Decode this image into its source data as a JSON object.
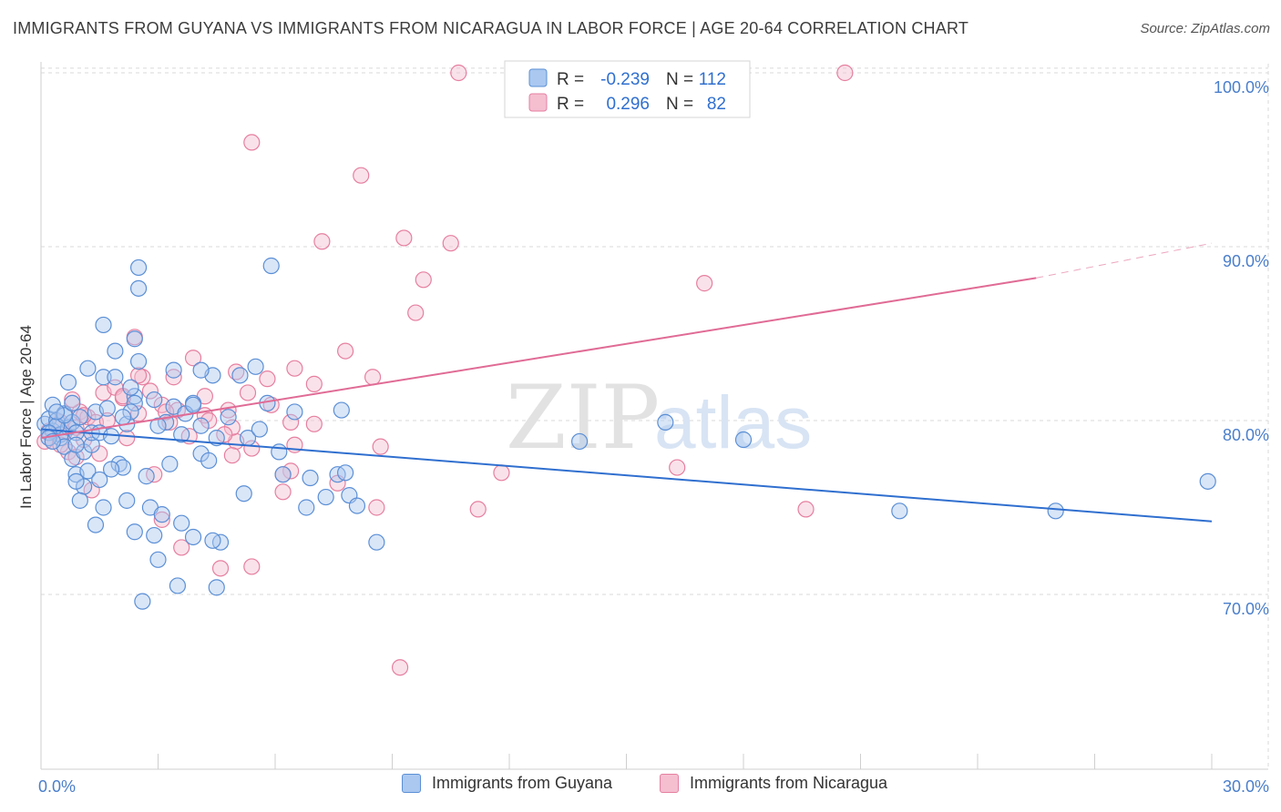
{
  "title": "IMMIGRANTS FROM GUYANA VS IMMIGRANTS FROM NICARAGUA IN LABOR FORCE | AGE 20-64 CORRELATION CHART",
  "source": "Source: ZipAtlas.com",
  "watermark": {
    "zip": "ZIP",
    "atlas": "atlas"
  },
  "colors": {
    "guyana_fill": "#aac8f0",
    "guyana_stroke": "#5b8fd6",
    "guyana_line": "#2f6fcf",
    "nicaragua_fill": "#f5bfd0",
    "nicaragua_stroke": "#e67fa0",
    "nicaragua_line": "#e06b95",
    "tick": "#4a7ecb",
    "grid": "#d9d9d9"
  },
  "legend": {
    "guyana": {
      "r_label": "R =",
      "r_value": "-0.239",
      "n_label": "N =",
      "n_value": "112"
    },
    "nicaragua": {
      "r_label": "R =",
      "r_value": "0.296",
      "n_label": "N =",
      "n_value": "82"
    }
  },
  "chart_data": {
    "type": "scatter",
    "ylabel": "In Labor Force | Age 20-64",
    "x_tick_labels": [
      "0.0%",
      "30.0%"
    ],
    "y_tick_labels": [
      "70.0%",
      "80.0%",
      "90.0%",
      "100.0%"
    ],
    "y_ticks": [
      70,
      80,
      90,
      100
    ],
    "xlim": [
      0,
      30
    ],
    "ylim": [
      60,
      101
    ],
    "grid": true,
    "legend_position": "top-center",
    "series": [
      {
        "name": "Immigrants from Guyana",
        "trend": {
          "x": [
            0,
            30
          ],
          "y": [
            79.5,
            74.2
          ]
        },
        "points": [
          [
            0.1,
            79.8
          ],
          [
            0.2,
            80.1
          ],
          [
            0.3,
            79.4
          ],
          [
            0.4,
            80.0
          ],
          [
            0.5,
            79.2
          ],
          [
            0.3,
            80.9
          ],
          [
            0.6,
            80.4
          ],
          [
            0.7,
            79.6
          ],
          [
            0.8,
            79.9
          ],
          [
            0.5,
            79.0
          ],
          [
            0.9,
            79.3
          ],
          [
            1.0,
            80.2
          ],
          [
            0.4,
            79.7
          ],
          [
            0.2,
            79.3
          ],
          [
            0.6,
            78.5
          ],
          [
            0.8,
            77.8
          ],
          [
            1.1,
            78.2
          ],
          [
            1.3,
            78.6
          ],
          [
            0.9,
            76.9
          ],
          [
            1.2,
            77.1
          ],
          [
            0.7,
            82.2
          ],
          [
            1.6,
            82.5
          ],
          [
            1.6,
            85.5
          ],
          [
            2.4,
            84.7
          ],
          [
            2.5,
            83.4
          ],
          [
            2.5,
            87.6
          ],
          [
            2.4,
            81.4
          ],
          [
            2.4,
            81.0
          ],
          [
            2.2,
            79.8
          ],
          [
            2.0,
            77.5
          ],
          [
            2.1,
            77.3
          ],
          [
            1.8,
            77.2
          ],
          [
            1.5,
            76.6
          ],
          [
            1.1,
            76.2
          ],
          [
            0.9,
            76.5
          ],
          [
            1.6,
            75.0
          ],
          [
            2.2,
            75.4
          ],
          [
            2.8,
            75.0
          ],
          [
            2.4,
            73.6
          ],
          [
            2.9,
            73.4
          ],
          [
            3.0,
            72.0
          ],
          [
            3.5,
            70.5
          ],
          [
            3.6,
            74.1
          ],
          [
            3.9,
            73.3
          ],
          [
            4.5,
            70.4
          ],
          [
            4.6,
            73.0
          ],
          [
            4.4,
            73.1
          ],
          [
            2.6,
            69.6
          ],
          [
            3.6,
            79.2
          ],
          [
            4.1,
            79.7
          ],
          [
            4.1,
            78.1
          ],
          [
            4.3,
            77.7
          ],
          [
            3.4,
            80.8
          ],
          [
            3.9,
            81.0
          ],
          [
            4.4,
            82.6
          ],
          [
            5.8,
            81.0
          ],
          [
            5.5,
            83.1
          ],
          [
            6.5,
            80.5
          ],
          [
            6.8,
            75.0
          ],
          [
            6.9,
            76.7
          ],
          [
            7.3,
            75.6
          ],
          [
            7.6,
            76.9
          ],
          [
            7.8,
            77.0
          ],
          [
            7.9,
            75.7
          ],
          [
            8.1,
            75.1
          ],
          [
            8.6,
            73.0
          ],
          [
            7.7,
            80.6
          ],
          [
            5.9,
            88.9
          ],
          [
            2.5,
            88.8
          ],
          [
            1.2,
            83.0
          ],
          [
            1.4,
            80.5
          ],
          [
            1.7,
            80.7
          ],
          [
            1.9,
            82.5
          ],
          [
            2.9,
            81.2
          ],
          [
            3.4,
            82.9
          ],
          [
            4.1,
            82.9
          ],
          [
            1.3,
            79.3
          ],
          [
            3.2,
            79.9
          ],
          [
            3.7,
            80.4
          ],
          [
            2.3,
            80.5
          ],
          [
            3.0,
            79.7
          ],
          [
            4.5,
            79.0
          ],
          [
            5.3,
            79.0
          ],
          [
            13.8,
            78.8
          ],
          [
            16.0,
            79.9
          ],
          [
            18.0,
            78.9
          ],
          [
            22.0,
            74.8
          ],
          [
            26.0,
            74.8
          ],
          [
            29.9,
            76.5
          ],
          [
            5.1,
            82.6
          ],
          [
            0.6,
            80.3
          ],
          [
            0.2,
            79.0
          ],
          [
            0.3,
            78.8
          ],
          [
            0.9,
            78.6
          ],
          [
            1.5,
            79.3
          ],
          [
            2.1,
            80.2
          ],
          [
            2.7,
            76.8
          ],
          [
            3.3,
            77.5
          ],
          [
            5.2,
            75.8
          ],
          [
            6.2,
            76.9
          ],
          [
            0.4,
            80.5
          ],
          [
            1.8,
            79.1
          ],
          [
            3.9,
            80.9
          ],
          [
            4.8,
            80.2
          ],
          [
            0.8,
            81.0
          ],
          [
            1.9,
            84.0
          ],
          [
            2.3,
            81.9
          ],
          [
            5.6,
            79.5
          ],
          [
            6.1,
            78.2
          ],
          [
            1.0,
            75.4
          ],
          [
            1.4,
            74.0
          ],
          [
            3.1,
            74.6
          ]
        ]
      },
      {
        "name": "Immigrants from Nicaragua",
        "trend": {
          "x": [
            0,
            25.5
          ],
          "y": [
            79.0,
            88.2
          ]
        },
        "trend_dashed": {
          "x": [
            25.5,
            30
          ],
          "y": [
            88.2,
            90.2
          ]
        },
        "points": [
          [
            0.2,
            79.4
          ],
          [
            0.3,
            78.8
          ],
          [
            0.4,
            80.0
          ],
          [
            0.6,
            79.3
          ],
          [
            0.7,
            78.2
          ],
          [
            0.9,
            79.6
          ],
          [
            1.0,
            80.5
          ],
          [
            0.5,
            79.9
          ],
          [
            0.8,
            81.2
          ],
          [
            1.2,
            80.2
          ],
          [
            1.4,
            79.9
          ],
          [
            1.6,
            81.6
          ],
          [
            1.9,
            81.9
          ],
          [
            2.1,
            81.3
          ],
          [
            2.4,
            84.8
          ],
          [
            2.6,
            82.5
          ],
          [
            2.8,
            81.7
          ],
          [
            3.1,
            80.9
          ],
          [
            3.4,
            82.5
          ],
          [
            3.9,
            83.6
          ],
          [
            4.2,
            81.4
          ],
          [
            4.8,
            80.6
          ],
          [
            5.0,
            82.8
          ],
          [
            5.8,
            82.4
          ],
          [
            6.5,
            83.0
          ],
          [
            7.8,
            84.0
          ],
          [
            9.3,
            90.5
          ],
          [
            9.8,
            88.1
          ],
          [
            9.6,
            86.2
          ],
          [
            11.8,
            77.0
          ],
          [
            16.3,
            77.3
          ],
          [
            17.0,
            87.9
          ],
          [
            19.6,
            74.9
          ],
          [
            11.2,
            74.9
          ],
          [
            2.9,
            76.9
          ],
          [
            1.3,
            76.0
          ],
          [
            3.1,
            74.3
          ],
          [
            3.6,
            72.7
          ],
          [
            4.6,
            71.5
          ],
          [
            5.4,
            71.6
          ],
          [
            6.2,
            75.9
          ],
          [
            6.5,
            78.6
          ],
          [
            7.0,
            79.8
          ],
          [
            7.6,
            76.4
          ],
          [
            8.6,
            75.0
          ],
          [
            9.2,
            65.8
          ],
          [
            4.2,
            80.3
          ],
          [
            5.0,
            78.8
          ],
          [
            5.4,
            78.4
          ],
          [
            6.4,
            79.9
          ],
          [
            5.4,
            96.0
          ],
          [
            8.2,
            94.1
          ],
          [
            10.7,
            100.0
          ],
          [
            10.5,
            90.2
          ],
          [
            20.6,
            100.0
          ],
          [
            7.2,
            90.3
          ],
          [
            5.3,
            81.6
          ],
          [
            3.3,
            79.9
          ],
          [
            2.5,
            80.4
          ],
          [
            1.1,
            78.9
          ],
          [
            0.5,
            78.6
          ],
          [
            0.9,
            77.9
          ],
          [
            1.5,
            78.1
          ],
          [
            2.2,
            79.0
          ],
          [
            3.8,
            79.1
          ],
          [
            4.3,
            80.0
          ],
          [
            4.9,
            79.6
          ],
          [
            6.4,
            77.1
          ],
          [
            5.9,
            80.9
          ],
          [
            3.5,
            80.6
          ],
          [
            4.7,
            79.2
          ],
          [
            2.1,
            81.4
          ],
          [
            1.7,
            80.0
          ],
          [
            8.7,
            78.5
          ],
          [
            6.2,
            76.9
          ],
          [
            4.9,
            78.0
          ],
          [
            3.2,
            80.5
          ],
          [
            2.5,
            82.6
          ],
          [
            1.1,
            80.3
          ],
          [
            0.1,
            78.8
          ],
          [
            8.5,
            82.5
          ],
          [
            7.0,
            82.1
          ]
        ]
      }
    ]
  },
  "bottom_legend": [
    {
      "label": "Immigrants from Guyana",
      "color": "guyana"
    },
    {
      "label": "Immigrants from Nicaragua",
      "color": "nicaragua"
    }
  ]
}
